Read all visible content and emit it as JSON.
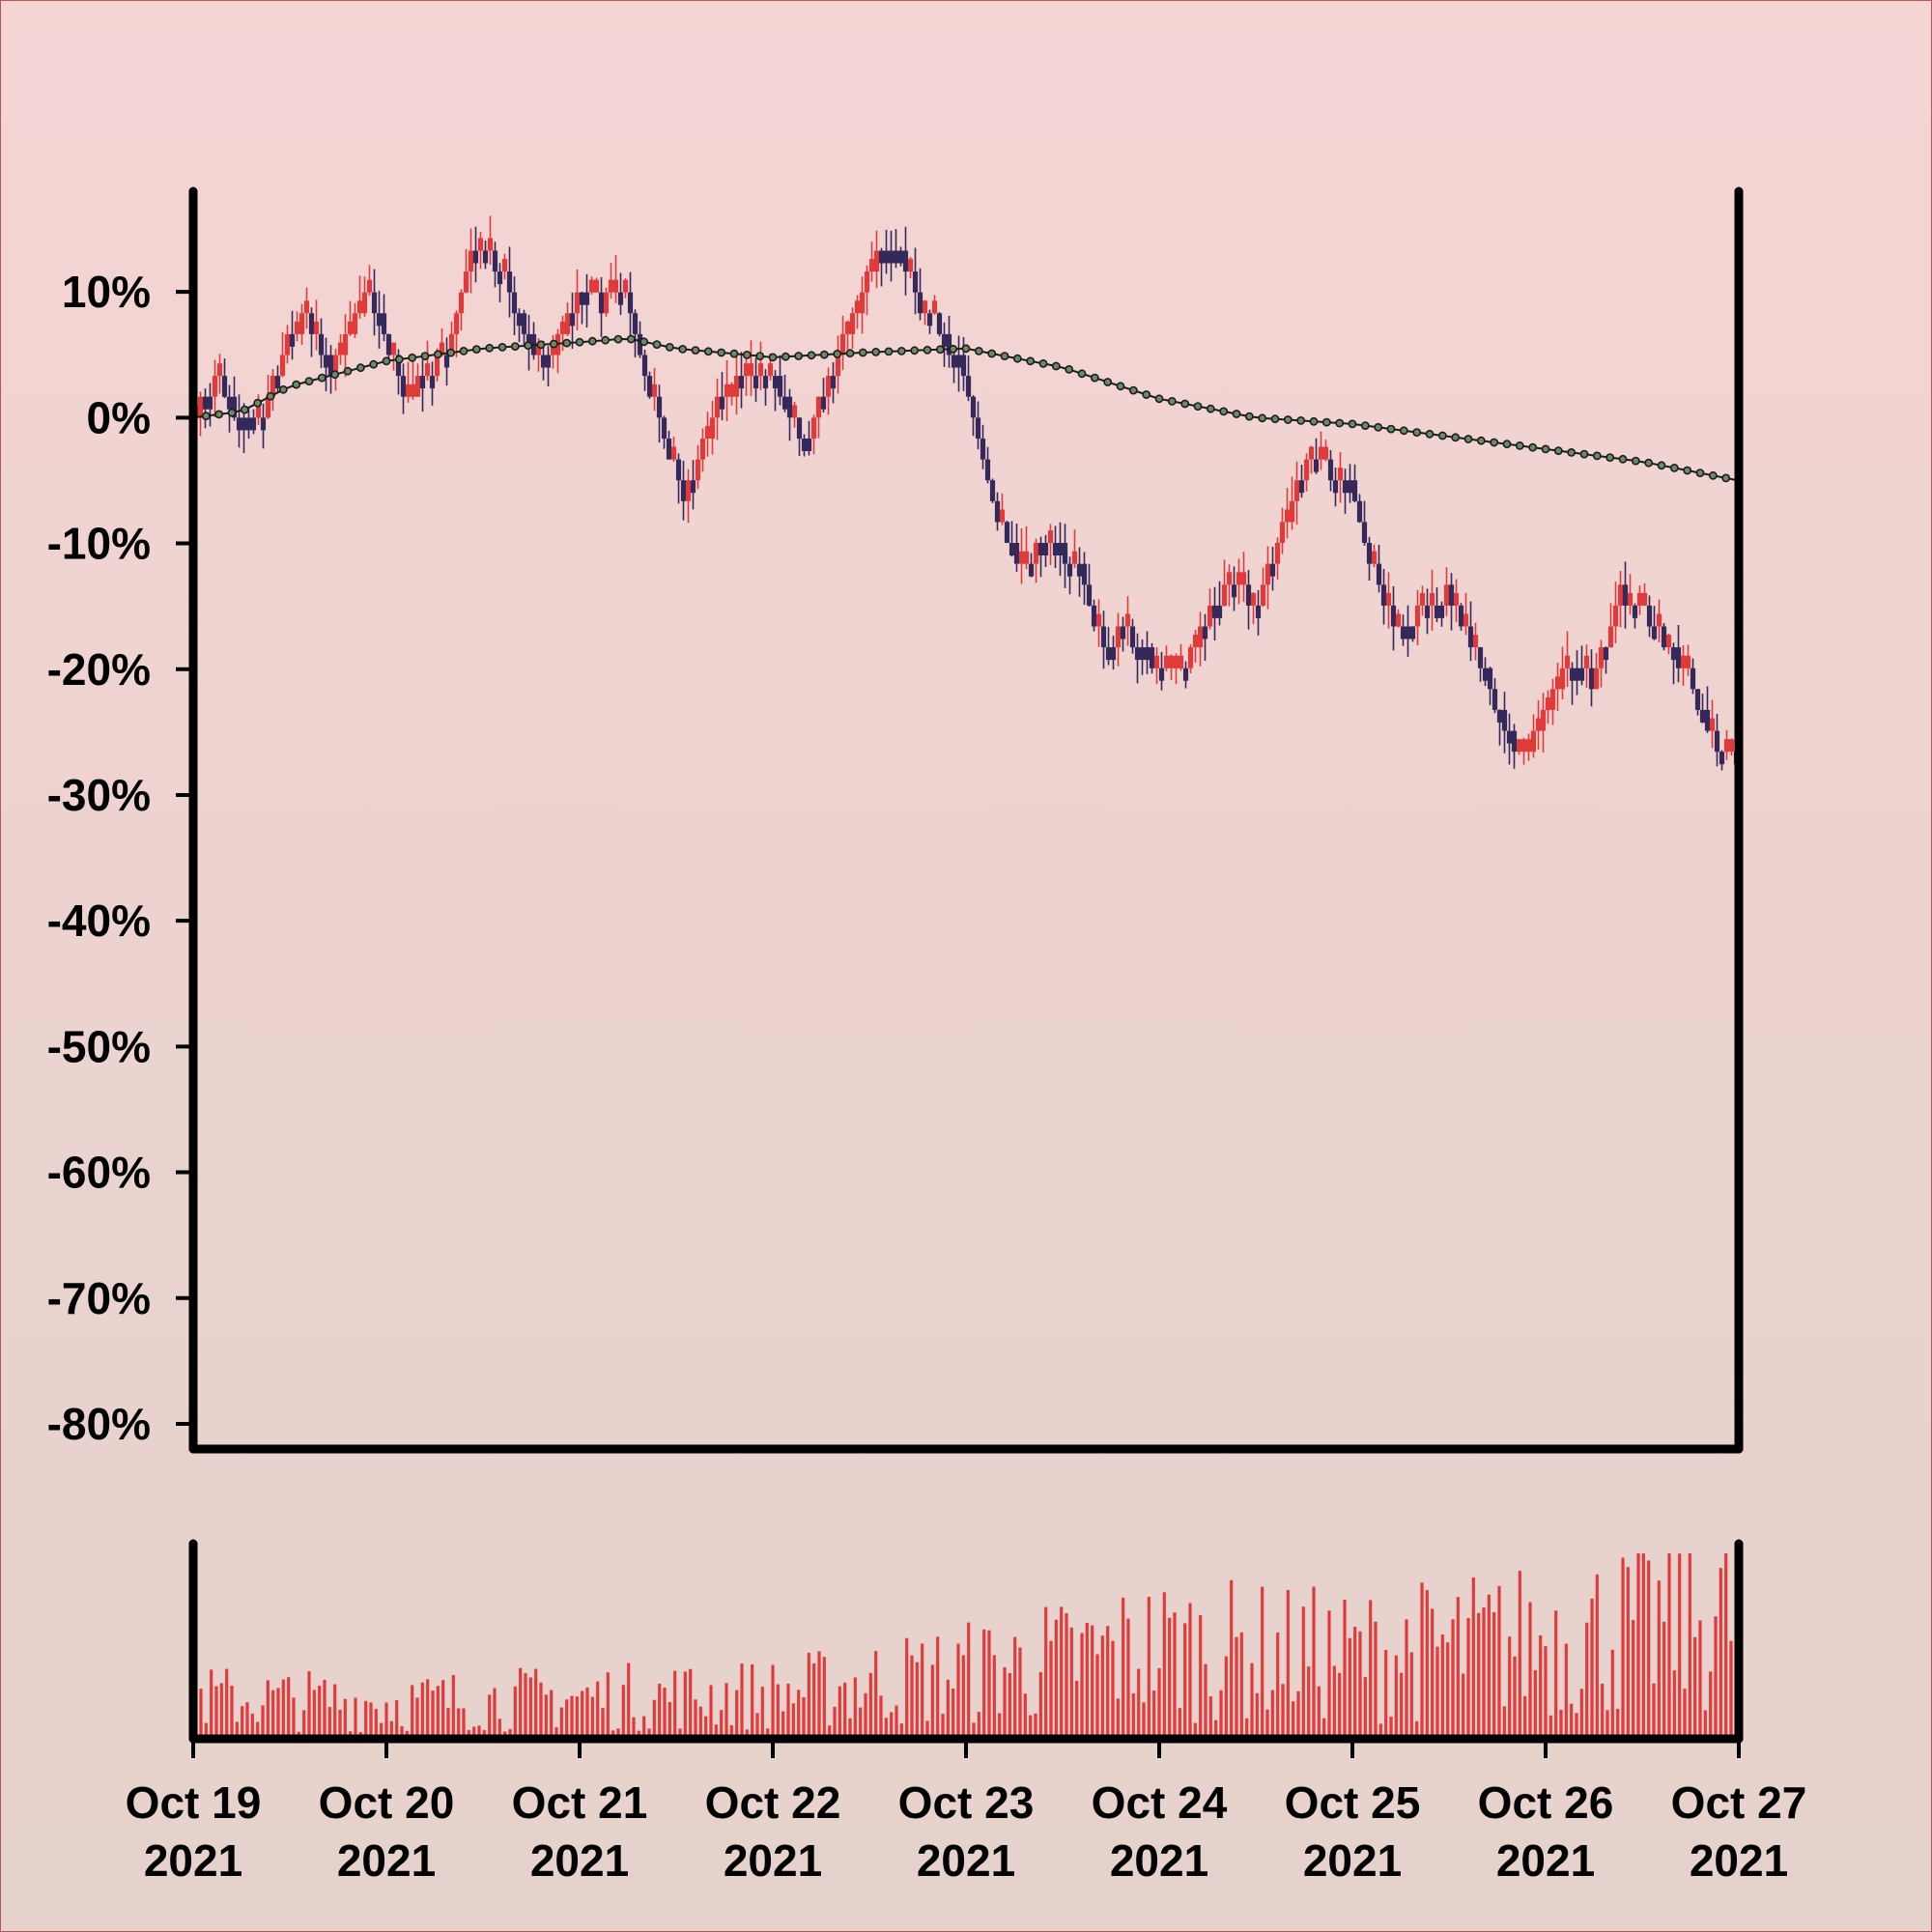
{
  "chart_data": {
    "type": "candlestick",
    "title": "",
    "xlabel": "",
    "ylabel": "",
    "ylim": [
      -80,
      18
    ],
    "yticks": [
      10,
      0,
      -10,
      -20,
      -30,
      -40,
      -50,
      -60,
      -70,
      -80
    ],
    "ytick_labels": [
      "10%",
      "0%",
      "-10%",
      "-20%",
      "-30%",
      "-40%",
      "-50%",
      "-60%",
      "-70%",
      "-80%"
    ],
    "x_range": [
      "2021-10-19",
      "2021-10-27"
    ],
    "xticks": [
      "2021-10-19",
      "2021-10-20",
      "2021-10-21",
      "2021-10-22",
      "2021-10-23",
      "2021-10-24",
      "2021-10-25",
      "2021-10-26",
      "2021-10-27"
    ],
    "xtick_labels": [
      [
        "Oct 19",
        "2021"
      ],
      [
        "Oct 20",
        "2021"
      ],
      [
        "Oct 21",
        "2021"
      ],
      [
        "Oct 22",
        "2021"
      ],
      [
        "Oct 23",
        "2021"
      ],
      [
        "Oct 24",
        "2021"
      ],
      [
        "Oct 25",
        "2021"
      ],
      [
        "Oct 26",
        "2021"
      ],
      [
        "Oct 27",
        "2021"
      ]
    ],
    "price_path": [
      {
        "t": "2021-10-19 00:00",
        "v": 0
      },
      {
        "t": "2021-10-19 03:00",
        "v": 3
      },
      {
        "t": "2021-10-19 06:00",
        "v": -1
      },
      {
        "t": "2021-10-19 09:00",
        "v": 1
      },
      {
        "t": "2021-10-19 12:00",
        "v": 7
      },
      {
        "t": "2021-10-19 14:00",
        "v": 8
      },
      {
        "t": "2021-10-19 17:00",
        "v": 4
      },
      {
        "t": "2021-10-19 20:00",
        "v": 8
      },
      {
        "t": "2021-10-19 22:00",
        "v": 10
      },
      {
        "t": "2021-10-20 00:00",
        "v": 6
      },
      {
        "t": "2021-10-20 02:00",
        "v": 2
      },
      {
        "t": "2021-10-20 05:00",
        "v": 3
      },
      {
        "t": "2021-10-20 08:00",
        "v": 6
      },
      {
        "t": "2021-10-20 11:00",
        "v": 14
      },
      {
        "t": "2021-10-20 14:00",
        "v": 12
      },
      {
        "t": "2021-10-20 17:00",
        "v": 7
      },
      {
        "t": "2021-10-20 20:00",
        "v": 4
      },
      {
        "t": "2021-10-20 22:00",
        "v": 7
      },
      {
        "t": "2021-10-21 00:00",
        "v": 10
      },
      {
        "t": "2021-10-21 03:00",
        "v": 9
      },
      {
        "t": "2021-10-21 05:00",
        "v": 11
      },
      {
        "t": "2021-10-21 08:00",
        "v": 4
      },
      {
        "t": "2021-10-21 11:00",
        "v": -3
      },
      {
        "t": "2021-10-21 13:00",
        "v": -6
      },
      {
        "t": "2021-10-21 15:00",
        "v": -3
      },
      {
        "t": "2021-10-21 17:00",
        "v": 1
      },
      {
        "t": "2021-10-21 20:00",
        "v": 3
      },
      {
        "t": "2021-10-21 22:00",
        "v": 4
      },
      {
        "t": "2021-10-22 00:00",
        "v": 4
      },
      {
        "t": "2021-10-22 02:00",
        "v": 0
      },
      {
        "t": "2021-10-22 04:00",
        "v": -2
      },
      {
        "t": "2021-10-22 07:00",
        "v": 3
      },
      {
        "t": "2021-10-22 10:00",
        "v": 8
      },
      {
        "t": "2021-10-22 13:00",
        "v": 13
      },
      {
        "t": "2021-10-22 16:00",
        "v": 13
      },
      {
        "t": "2021-10-22 18:00",
        "v": 9
      },
      {
        "t": "2021-10-22 21:00",
        "v": 7
      },
      {
        "t": "2021-10-23 00:00",
        "v": 3
      },
      {
        "t": "2021-10-23 03:00",
        "v": -6
      },
      {
        "t": "2021-10-23 06:00",
        "v": -11
      },
      {
        "t": "2021-10-23 08:00",
        "v": -11
      },
      {
        "t": "2021-10-23 11:00",
        "v": -10
      },
      {
        "t": "2021-10-23 14:00",
        "v": -12
      },
      {
        "t": "2021-10-23 17:00",
        "v": -18
      },
      {
        "t": "2021-10-23 20:00",
        "v": -17
      },
      {
        "t": "2021-10-24 00:00",
        "v": -20
      },
      {
        "t": "2021-10-24 03:00",
        "v": -20
      },
      {
        "t": "2021-10-24 06:00",
        "v": -16
      },
      {
        "t": "2021-10-24 09:00",
        "v": -13
      },
      {
        "t": "2021-10-24 12:00",
        "v": -15
      },
      {
        "t": "2021-10-24 15:00",
        "v": -9
      },
      {
        "t": "2021-10-24 18:00",
        "v": -4
      },
      {
        "t": "2021-10-24 21:00",
        "v": -4
      },
      {
        "t": "2021-10-25 00:00",
        "v": -6
      },
      {
        "t": "2021-10-25 03:00",
        "v": -13
      },
      {
        "t": "2021-10-25 06:00",
        "v": -17
      },
      {
        "t": "2021-10-25 09:00",
        "v": -15
      },
      {
        "t": "2021-10-25 12:00",
        "v": -14
      },
      {
        "t": "2021-10-25 15:00",
        "v": -18
      },
      {
        "t": "2021-10-25 18:00",
        "v": -23
      },
      {
        "t": "2021-10-25 21:00",
        "v": -27
      },
      {
        "t": "2021-10-26 00:00",
        "v": -23
      },
      {
        "t": "2021-10-26 03:00",
        "v": -19
      },
      {
        "t": "2021-10-26 06:00",
        "v": -21
      },
      {
        "t": "2021-10-26 09:00",
        "v": -14
      },
      {
        "t": "2021-10-26 12:00",
        "v": -15
      },
      {
        "t": "2021-10-26 15:00",
        "v": -18
      },
      {
        "t": "2021-10-26 18:00",
        "v": -21
      },
      {
        "t": "2021-10-26 21:00",
        "v": -26
      },
      {
        "t": "2021-10-27 00:00",
        "v": -26
      }
    ],
    "moving_average": [
      {
        "t": "2021-10-19 00:00",
        "v": 0
      },
      {
        "t": "2021-10-19 06:00",
        "v": 0.5
      },
      {
        "t": "2021-10-19 12:00",
        "v": 2.5
      },
      {
        "t": "2021-10-20 00:00",
        "v": 4.5
      },
      {
        "t": "2021-10-20 12:00",
        "v": 5.5
      },
      {
        "t": "2021-10-21 00:00",
        "v": 6
      },
      {
        "t": "2021-10-21 06:00",
        "v": 6.3
      },
      {
        "t": "2021-10-21 12:00",
        "v": 5.5
      },
      {
        "t": "2021-10-22 00:00",
        "v": 4.8
      },
      {
        "t": "2021-10-22 12:00",
        "v": 5.2
      },
      {
        "t": "2021-10-23 00:00",
        "v": 5.5
      },
      {
        "t": "2021-10-23 12:00",
        "v": 4
      },
      {
        "t": "2021-10-24 00:00",
        "v": 1.5
      },
      {
        "t": "2021-10-24 12:00",
        "v": 0
      },
      {
        "t": "2021-10-25 00:00",
        "v": -0.5
      },
      {
        "t": "2021-10-25 12:00",
        "v": -1.5
      },
      {
        "t": "2021-10-26 00:00",
        "v": -2.5
      },
      {
        "t": "2021-10-26 12:00",
        "v": -3.5
      },
      {
        "t": "2021-10-27 00:00",
        "v": -5
      }
    ],
    "volume_profile": [
      {
        "t": "2021-10-19",
        "level": 0.25
      },
      {
        "t": "2021-10-20",
        "level": 0.22
      },
      {
        "t": "2021-10-21",
        "level": 0.25
      },
      {
        "t": "2021-10-22",
        "level": 0.27
      },
      {
        "t": "2021-10-23",
        "level": 0.4
      },
      {
        "t": "2021-10-24",
        "level": 0.55
      },
      {
        "t": "2021-10-25",
        "level": 0.5
      },
      {
        "t": "2021-10-26",
        "level": 0.6
      },
      {
        "t": "2021-10-27",
        "level": 0.75
      }
    ],
    "grid": false,
    "up_color": "#e03a3a",
    "down_color": "#35285a",
    "ma_line_color": "#1c1c1c",
    "ma_marker_color": "#6b8a66",
    "volume_color": "#e03a3a",
    "axis_color": "#000000"
  }
}
